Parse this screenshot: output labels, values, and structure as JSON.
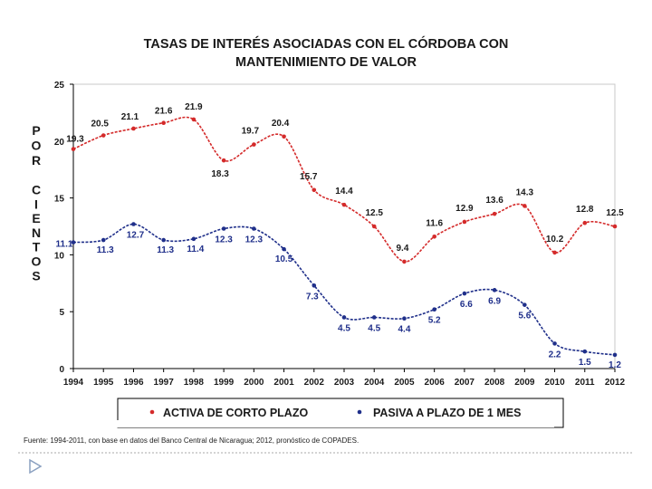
{
  "chart_data": {
    "type": "line",
    "title": [
      "TASAS DE INTERÉS ASOCIADAS CON EL CÓRDOBA CON",
      "MANTENIMIENTO DE VALOR"
    ],
    "ylabel_words": [
      "POR",
      "CIENTOS"
    ],
    "xlabel": "",
    "ylim": [
      0,
      25
    ],
    "yticks": [
      0,
      5,
      10,
      15,
      20,
      25
    ],
    "categories": [
      "1994",
      "1995",
      "1996",
      "1997",
      "1998",
      "1999",
      "2000",
      "2001",
      "2002",
      "2003",
      "2004",
      "2005",
      "2006",
      "2007",
      "2008",
      "2009",
      "2010",
      "2011",
      "2012"
    ],
    "series": [
      {
        "name": "ACTIVA DE CORTO PLAZO",
        "color": "#d42a2a",
        "values": [
          19.3,
          20.5,
          21.1,
          21.6,
          21.9,
          18.3,
          19.7,
          20.4,
          15.7,
          14.4,
          12.5,
          9.4,
          11.6,
          12.9,
          13.6,
          14.3,
          10.2,
          12.8,
          12.5
        ],
        "labels": [
          "19.3",
          "20.5",
          "21.1",
          "21.6",
          "21.9",
          "18.3",
          "19.7",
          "20.4",
          "15.7",
          "14.4",
          "12.5",
          "9.4",
          "11.6",
          "12.9",
          "13.6",
          "14.3",
          "10.2",
          "12.8",
          "12.5"
        ]
      },
      {
        "name": "PASIVA A PLAZO DE 1 MES",
        "color": "#1f2f8a",
        "values": [
          11.1,
          11.3,
          12.7,
          11.3,
          11.4,
          12.3,
          12.3,
          10.5,
          7.3,
          4.5,
          4.5,
          4.4,
          5.2,
          6.6,
          6.9,
          5.6,
          2.2,
          1.5,
          1.2
        ],
        "labels": [
          "11.1",
          "11.3",
          "12.7",
          "11.3",
          "11.4",
          "12.3",
          "12.3",
          "10.5",
          "7.3",
          "4.5",
          "4.5",
          "4.4",
          "5.2",
          "6.6",
          "6.9",
          "5.6",
          "2.2",
          "1.5",
          "1.2"
        ]
      }
    ],
    "legend": "bottom",
    "grid": false
  },
  "source_note": "Fuente: 1994-2011, con base en datos del Banco Central de Nicaragua; 2012, pronóstico de COPADES."
}
